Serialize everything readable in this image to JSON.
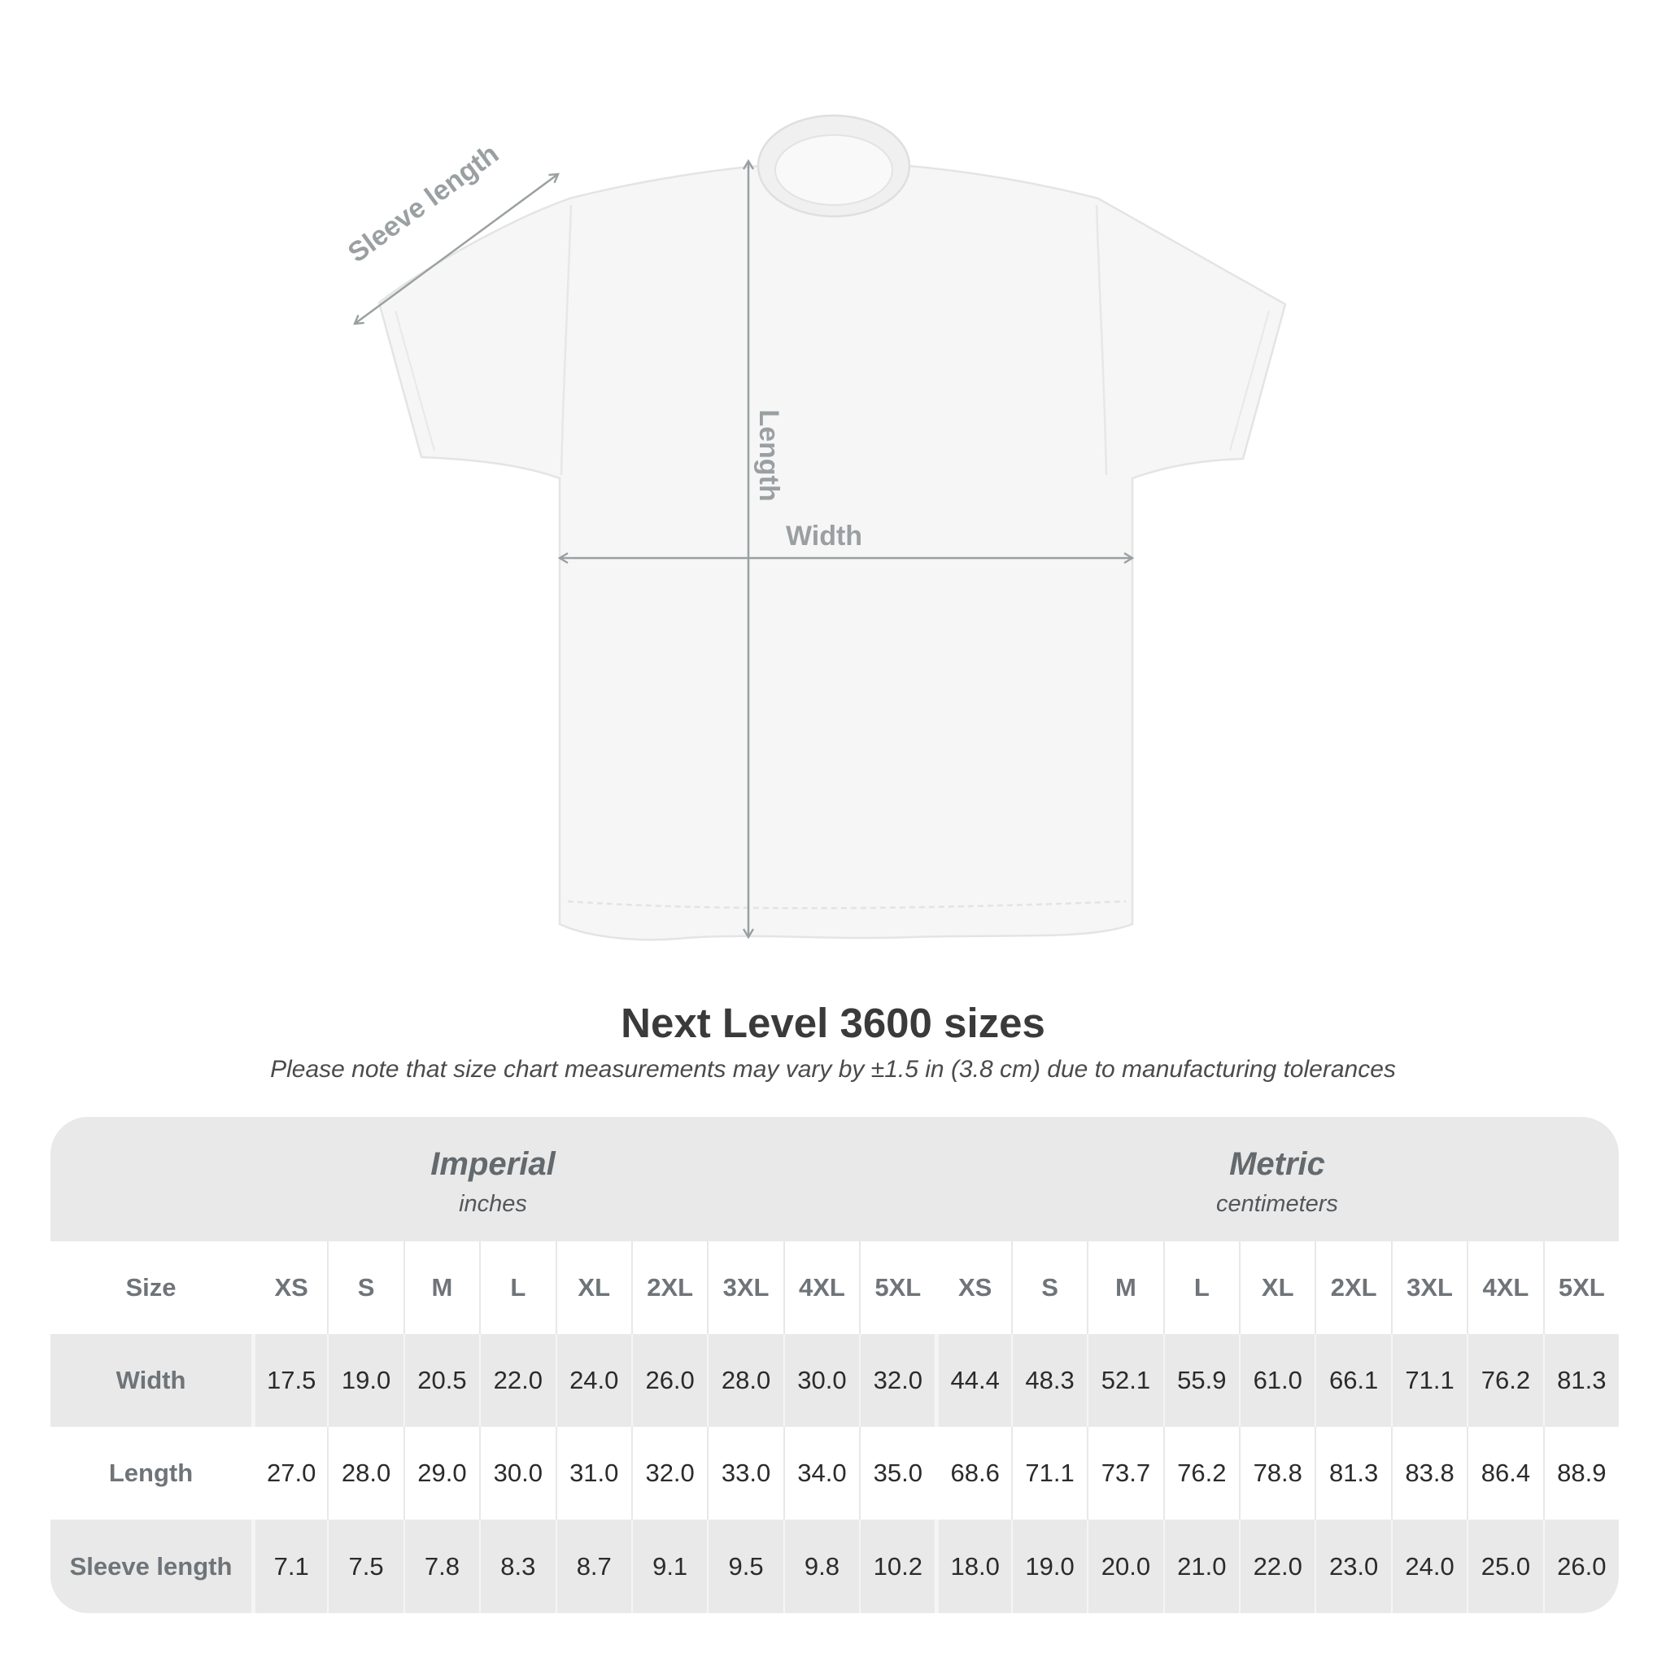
{
  "diagram": {
    "sleeve_label": "Sleeve length",
    "length_label": "Length",
    "width_label": "Width"
  },
  "title": "Next Level 3600 sizes",
  "subtitle": "Please note that size chart measurements may vary by ±1.5 in (3.8 cm) due to manufacturing tolerances",
  "table": {
    "unit_groups": [
      {
        "name": "Imperial",
        "unit": "inches"
      },
      {
        "name": "Metric",
        "unit": "centimeters"
      }
    ],
    "size_header": "Size",
    "sizes": [
      "XS",
      "S",
      "M",
      "L",
      "XL",
      "2XL",
      "3XL",
      "4XL",
      "5XL"
    ],
    "rows": [
      {
        "label": "Width",
        "imperial": [
          "17.5",
          "19.0",
          "20.5",
          "22.0",
          "24.0",
          "26.0",
          "28.0",
          "30.0",
          "32.0"
        ],
        "metric": [
          "44.4",
          "48.3",
          "52.1",
          "55.9",
          "61.0",
          "66.1",
          "71.1",
          "76.2",
          "81.3"
        ]
      },
      {
        "label": "Length",
        "imperial": [
          "27.0",
          "28.0",
          "29.0",
          "30.0",
          "31.0",
          "32.0",
          "33.0",
          "34.0",
          "35.0"
        ],
        "metric": [
          "68.6",
          "71.1",
          "73.7",
          "76.2",
          "78.8",
          "81.3",
          "83.8",
          "86.4",
          "88.9"
        ]
      },
      {
        "label": "Sleeve length",
        "imperial": [
          "7.1",
          "7.5",
          "7.8",
          "8.3",
          "8.7",
          "9.1",
          "9.5",
          "9.8",
          "10.2"
        ],
        "metric": [
          "18.0",
          "19.0",
          "20.0",
          "21.0",
          "22.0",
          "23.0",
          "24.0",
          "25.0",
          "26.0"
        ]
      }
    ]
  },
  "colors": {
    "row_band": "#e9e9e9",
    "value_text": "#2b2b2b",
    "label_text": "#6e7478",
    "annotation_gray": "#9aa0a2",
    "title_text": "#3a3a3a",
    "shirt_fill": "#f6f6f6"
  }
}
